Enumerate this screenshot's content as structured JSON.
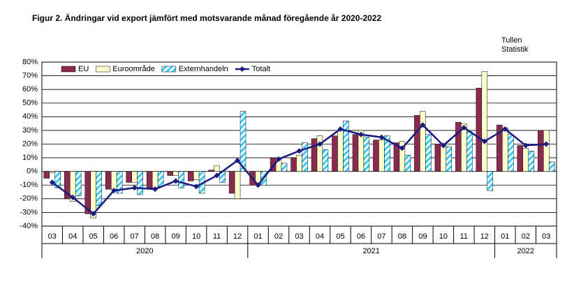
{
  "chart_data": {
    "type": "bar",
    "title": "Figur  2. Ändringar vid  export jämfört med motsvarande månad föregående år 2020-2022",
    "source": [
      "Tullen",
      "Statistik"
    ],
    "groups": [
      {
        "name": "2020",
        "categories": [
          "03",
          "04",
          "05",
          "06",
          "07",
          "08",
          "09",
          "10",
          "11",
          "12"
        ]
      },
      {
        "name": "2021",
        "categories": [
          "01",
          "02",
          "03",
          "04",
          "05",
          "06",
          "07",
          "08",
          "09",
          "10",
          "11",
          "12"
        ]
      },
      {
        "name": "2022",
        "categories": [
          "01",
          "02",
          "03"
        ]
      }
    ],
    "series": [
      {
        "name": "EU",
        "type": "bar",
        "color": "#8b2a50",
        "values": [
          -5,
          -20,
          -31,
          -13,
          -8,
          -12,
          -3,
          -7,
          1,
          -16,
          -10,
          10,
          10,
          24,
          26,
          27,
          23,
          21,
          41,
          20,
          36,
          61,
          34,
          19,
          30
        ]
      },
      {
        "name": "Euroområde",
        "type": "bar",
        "color": "#ffffcc",
        "values": [
          -1,
          -22,
          -34,
          -13,
          -8,
          -12,
          -3,
          -6,
          4,
          -20,
          -10,
          10,
          12,
          26,
          30,
          30,
          23,
          22,
          44,
          20,
          35,
          73,
          32,
          17,
          30
        ]
      },
      {
        "name": "Externhandeln",
        "type": "bar",
        "color": "#33ccff",
        "pattern": "diagonal",
        "values": [
          -12,
          -18,
          -25,
          -16,
          -17,
          -11,
          -12,
          -16,
          -8,
          44,
          -10,
          6,
          21,
          16,
          37,
          25,
          26,
          12,
          27,
          18,
          29,
          -14,
          27,
          15,
          7
        ]
      },
      {
        "name": "Totalt",
        "type": "line",
        "color": "#1a1a80",
        "values": [
          -8,
          -19,
          -31,
          -14,
          -12,
          -13,
          -7,
          -11,
          -3,
          8,
          -10,
          9,
          15,
          20,
          31,
          27,
          25,
          17,
          34,
          19,
          32,
          22,
          31,
          19,
          20
        ]
      }
    ],
    "ylim": [
      -40,
      80
    ],
    "yticks": [
      {
        "value": -40,
        "label": "-40%"
      },
      {
        "value": -30,
        "label": "-30%"
      },
      {
        "value": -20,
        "label": "-20%"
      },
      {
        "value": -10,
        "label": "-10%"
      },
      {
        "value": 0,
        "label": "0%"
      },
      {
        "value": 10,
        "label": "10%"
      },
      {
        "value": 20,
        "label": "20%"
      },
      {
        "value": 30,
        "label": "30%"
      },
      {
        "value": 40,
        "label": "40%"
      },
      {
        "value": 50,
        "label": "50%"
      },
      {
        "value": 60,
        "label": "60%"
      },
      {
        "value": 70,
        "label": "70%"
      },
      {
        "value": 80,
        "label": "80%"
      }
    ],
    "grid": true,
    "legend": "top-left"
  }
}
